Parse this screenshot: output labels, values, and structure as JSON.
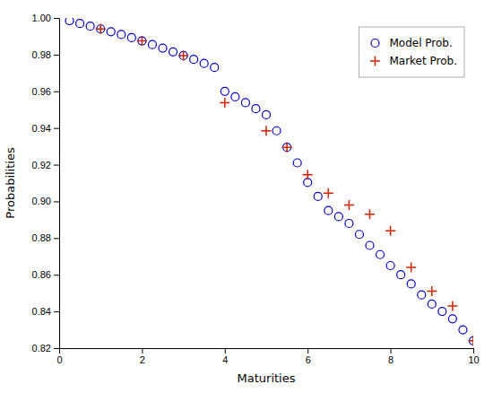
{
  "chart_data": {
    "type": "scatter",
    "xlabel": "Maturities",
    "ylabel": "Probabilities",
    "series": [
      {
        "name": "Model Prob.",
        "color": "#0000cc",
        "marker": "circle",
        "x": [
          0.25,
          0.5,
          0.75,
          1.0,
          1.25,
          1.5,
          1.75,
          2.0,
          2.25,
          2.5,
          2.75,
          3.0,
          3.25,
          3.5,
          3.75,
          4.0,
          4.25,
          4.5,
          4.75,
          5.0,
          5.25,
          5.5,
          5.75,
          6.0,
          6.25,
          6.5,
          6.75,
          7.0,
          7.25,
          7.5,
          7.75,
          8.0,
          8.25,
          8.5,
          8.75,
          9.0,
          9.25,
          9.5,
          9.75,
          10.0
        ],
        "values": [
          0.9985,
          0.997,
          0.9955,
          0.994,
          0.9925,
          0.991,
          0.9893,
          0.9875,
          0.9855,
          0.9836,
          0.9815,
          0.9795,
          0.9774,
          0.9752,
          0.973,
          0.96,
          0.957,
          0.9538,
          0.9505,
          0.9472,
          0.9385,
          0.9295,
          0.921,
          0.9103,
          0.9027,
          0.895,
          0.8917,
          0.888,
          0.882,
          0.876,
          0.871,
          0.865,
          0.86,
          0.855,
          0.849,
          0.844,
          0.84,
          0.836,
          0.83,
          0.824
        ]
      },
      {
        "name": "Market Prob.",
        "color": "#cc2200",
        "marker": "plus",
        "x": [
          1.0,
          2.0,
          3.0,
          4.0,
          5.0,
          5.5,
          6.0,
          6.5,
          7.0,
          7.5,
          8.0,
          8.5,
          9.0,
          9.5,
          10.0
        ],
        "values": [
          0.994,
          0.9875,
          0.9795,
          0.9538,
          0.9385,
          0.9295,
          0.9145,
          0.9045,
          0.898,
          0.893,
          0.884,
          0.864,
          0.851,
          0.843,
          0.824
        ]
      }
    ],
    "xlim": [
      0,
      10
    ],
    "ylim": [
      0.82,
      1.0
    ],
    "xticks": [
      0,
      2,
      4,
      6,
      8,
      10
    ],
    "yticks": [
      0.82,
      0.84,
      0.86,
      0.88,
      {
        "value": 0.9,
        "label": "0.90"
      },
      0.92,
      0.94,
      0.96,
      0.98,
      {
        "value": 1.0,
        "label": "1.00"
      }
    ],
    "legend": "upper right"
  }
}
